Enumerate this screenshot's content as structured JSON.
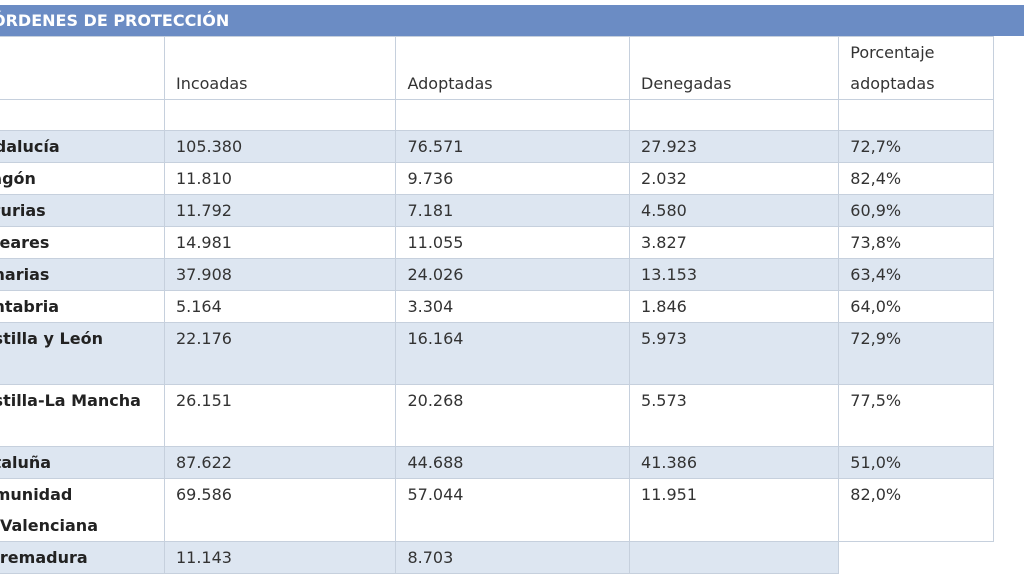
{
  "table": {
    "title": "ÓRDENES DE PROTECCIÓN",
    "headers": [
      "",
      "Incoadas",
      "Adoptadas",
      "Denegadas",
      "Porcentaje adoptadas"
    ],
    "rows": [
      {
        "name": "Andalucía",
        "incoadas": "105.380",
        "adoptadas": "76.571",
        "denegadas": "27.923",
        "porcentaje": "72,7%"
      },
      {
        "name": "Aragón",
        "incoadas": "11.810",
        "adoptadas": "9.736",
        "denegadas": "2.032",
        "porcentaje": "82,4%"
      },
      {
        "name": "Asturias",
        "incoadas": "11.792",
        "adoptadas": "7.181",
        "denegadas": "4.580",
        "porcentaje": "60,9%"
      },
      {
        "name": "Baleares",
        "incoadas": "14.981",
        "adoptadas": "11.055",
        "denegadas": "3.827",
        "porcentaje": "73,8%"
      },
      {
        "name": "Canarias",
        "incoadas": "37.908",
        "adoptadas": "24.026",
        "denegadas": "13.153",
        "porcentaje": "63,4%"
      },
      {
        "name": "Cantabria",
        "incoadas": "5.164",
        "adoptadas": "3.304",
        "denegadas": "1.846",
        "porcentaje": "64,0%"
      },
      {
        "name": "Castilla y León",
        "incoadas": "22.176",
        "adoptadas": "16.164",
        "denegadas": "5.973",
        "porcentaje": "72,9%"
      },
      {
        "name": "Castilla-La Mancha",
        "incoadas": "26.151",
        "adoptadas": "20.268",
        "denegadas": "5.573",
        "porcentaje": "77,5%"
      },
      {
        "name": "Cataluña",
        "incoadas": "87.622",
        "adoptadas": "44.688",
        "denegadas": "41.386",
        "porcentaje": "51,0%"
      },
      {
        "name": "Comunidad Valenciana",
        "incoadas": "69.586",
        "adoptadas": "57.044",
        "denegadas": "11.951",
        "porcentaje": "82,0%"
      },
      {
        "name": "Extremadura",
        "incoadas": "11.143",
        "adoptadas": "8.703",
        "denegadas": "",
        "porcentaje": ""
      }
    ]
  }
}
